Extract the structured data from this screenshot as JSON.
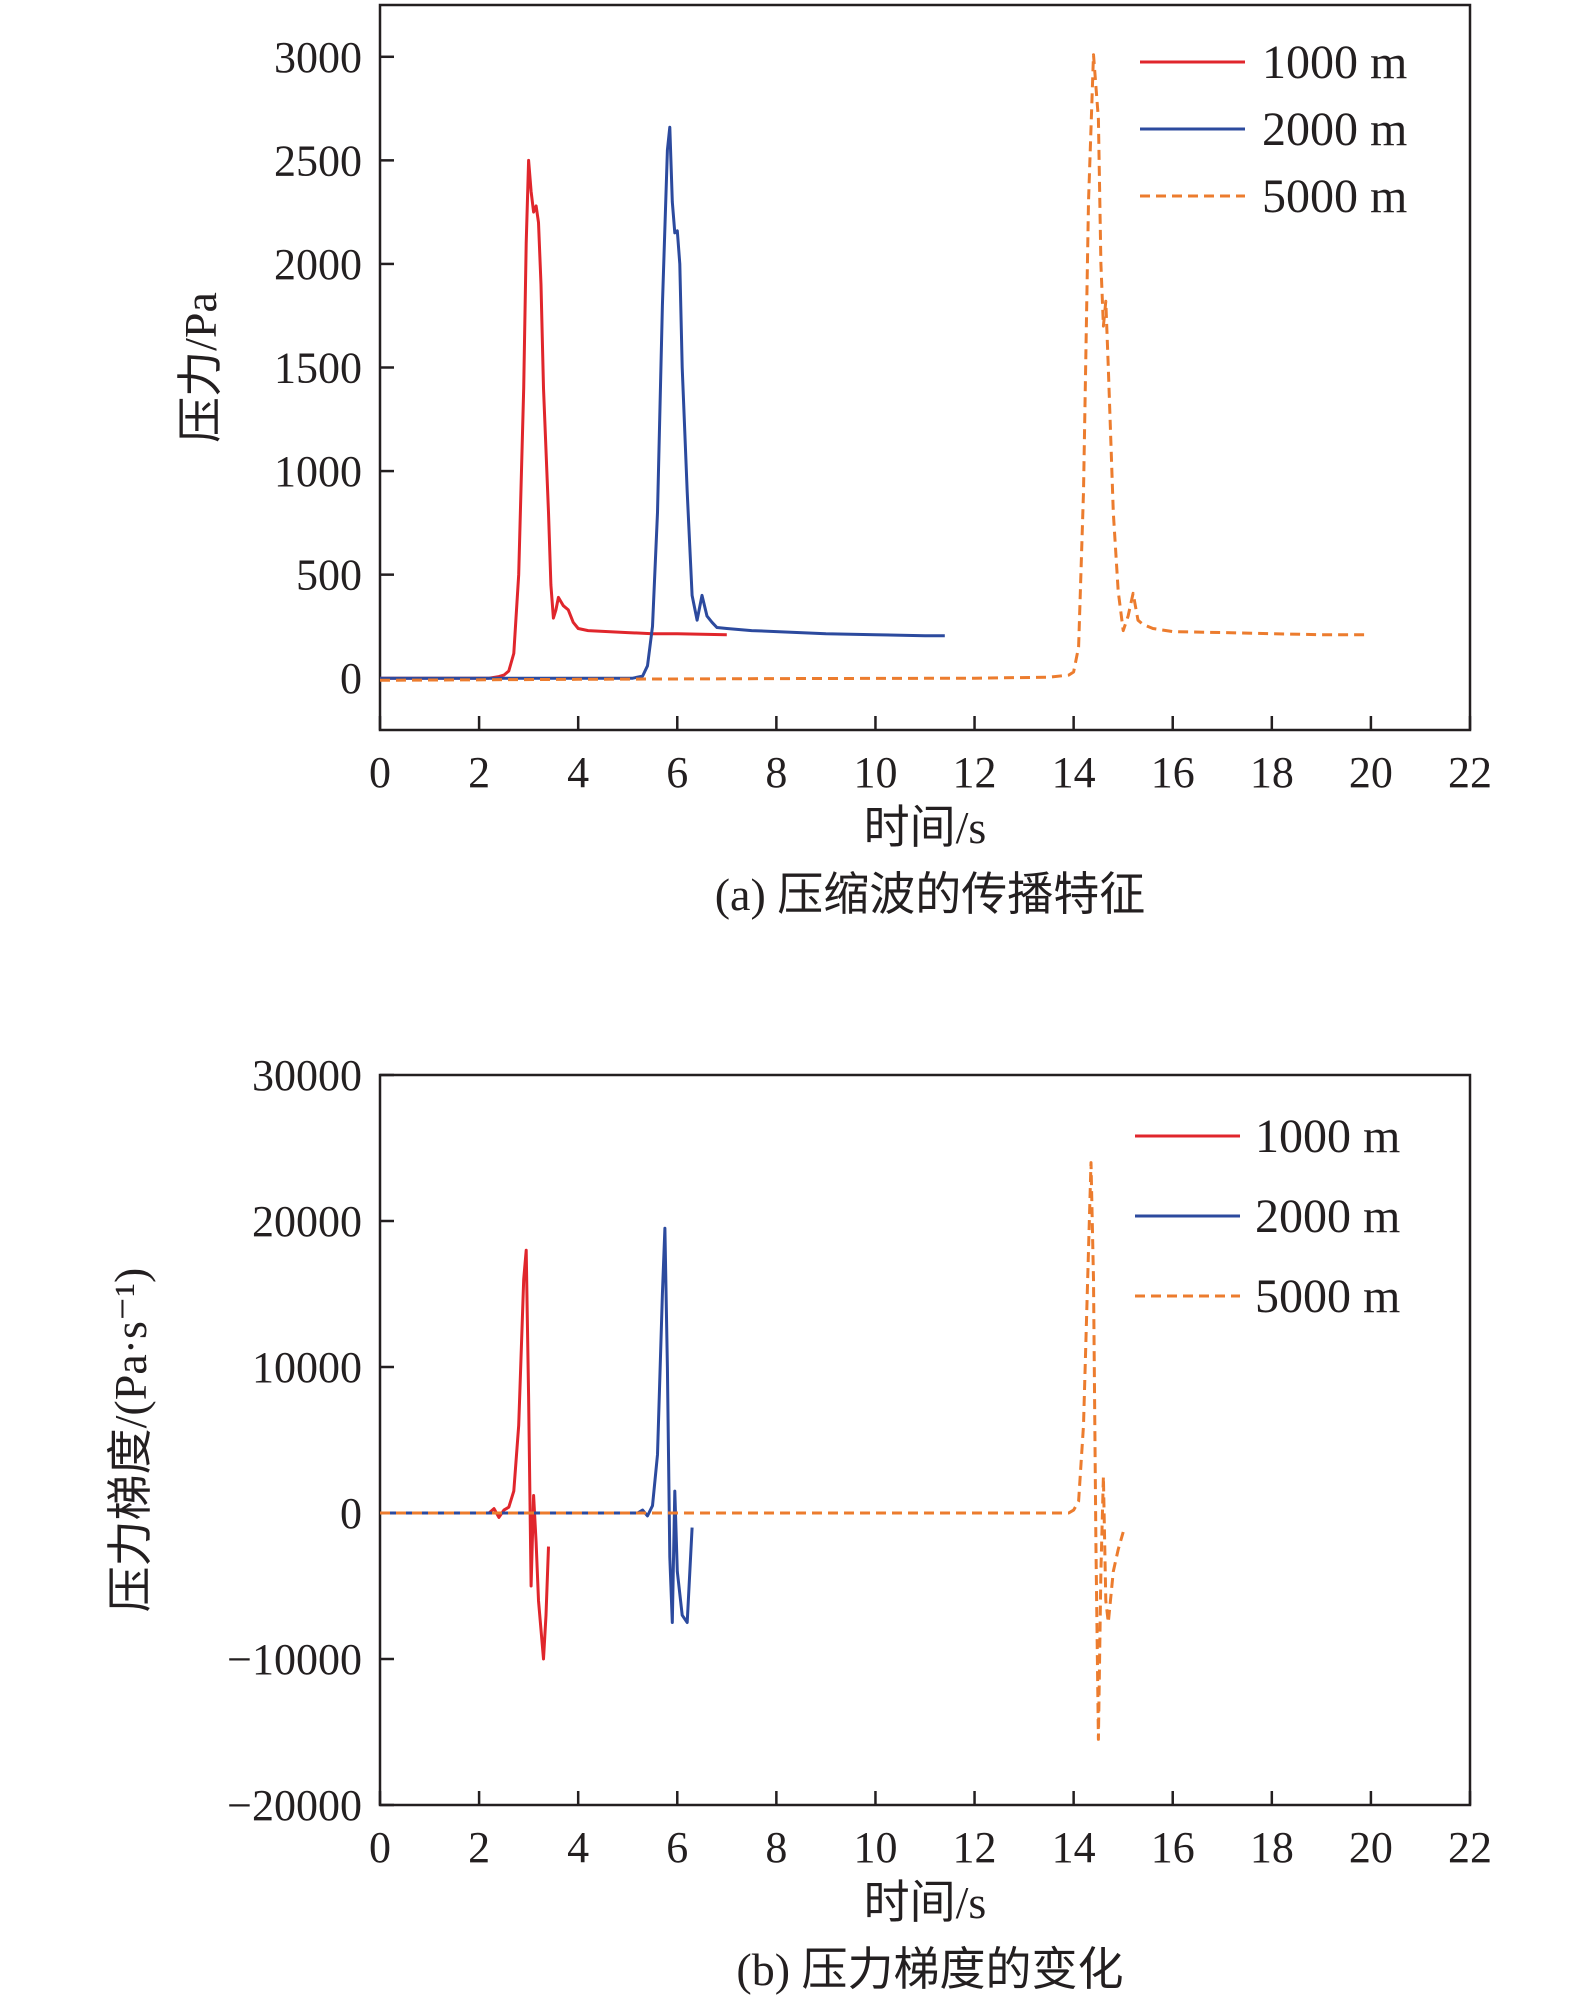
{
  "chart_data": [
    {
      "type": "line",
      "caption": "(a) 压缩波的传播特征",
      "xlabel": "时间/s",
      "ylabel": "压力/Pa",
      "xlim": [
        0,
        22
      ],
      "ylim": [
        -250,
        3250
      ],
      "x_ticks": [
        0,
        2,
        4,
        6,
        8,
        10,
        12,
        14,
        16,
        18,
        20,
        22
      ],
      "y_ticks": [
        0,
        500,
        1000,
        1500,
        2000,
        2500,
        3000
      ],
      "x_tick_labels": [
        "0",
        "2",
        "4",
        "6",
        "8",
        "10",
        "12",
        "14",
        "16",
        "18",
        "20",
        "22"
      ],
      "y_tick_labels": [
        "0",
        "500",
        "1000",
        "1500",
        "2000",
        "2500",
        "3000"
      ],
      "legend_position": "top-right",
      "grid": false,
      "series": [
        {
          "name": "1000 m",
          "color": "#e0262c",
          "dash": "solid",
          "points": [
            [
              0,
              0
            ],
            [
              2.2,
              0
            ],
            [
              2.4,
              8
            ],
            [
              2.5,
              15
            ],
            [
              2.6,
              35
            ],
            [
              2.7,
              120
            ],
            [
              2.8,
              500
            ],
            [
              2.9,
              1400
            ],
            [
              2.95,
              2100
            ],
            [
              3.0,
              2500
            ],
            [
              3.05,
              2350
            ],
            [
              3.1,
              2250
            ],
            [
              3.15,
              2280
            ],
            [
              3.2,
              2200
            ],
            [
              3.25,
              1900
            ],
            [
              3.3,
              1400
            ],
            [
              3.4,
              800
            ],
            [
              3.45,
              450
            ],
            [
              3.5,
              290
            ],
            [
              3.55,
              330
            ],
            [
              3.6,
              390
            ],
            [
              3.7,
              350
            ],
            [
              3.8,
              330
            ],
            [
              3.9,
              270
            ],
            [
              4.0,
              240
            ],
            [
              4.2,
              230
            ],
            [
              4.6,
              225
            ],
            [
              5.0,
              220
            ],
            [
              5.5,
              215
            ],
            [
              6.0,
              215
            ],
            [
              6.5,
              212
            ],
            [
              7.0,
              210
            ]
          ]
        },
        {
          "name": "2000 m",
          "color": "#2c4a9e",
          "dash": "solid",
          "points": [
            [
              0,
              0
            ],
            [
              5.1,
              0
            ],
            [
              5.3,
              10
            ],
            [
              5.4,
              60
            ],
            [
              5.5,
              250
            ],
            [
              5.6,
              800
            ],
            [
              5.7,
              1800
            ],
            [
              5.8,
              2550
            ],
            [
              5.85,
              2660
            ],
            [
              5.9,
              2300
            ],
            [
              5.95,
              2150
            ],
            [
              6.0,
              2160
            ],
            [
              6.05,
              2000
            ],
            [
              6.1,
              1500
            ],
            [
              6.2,
              900
            ],
            [
              6.3,
              400
            ],
            [
              6.4,
              280
            ],
            [
              6.5,
              400
            ],
            [
              6.6,
              300
            ],
            [
              6.7,
              270
            ],
            [
              6.8,
              245
            ],
            [
              7.0,
              240
            ],
            [
              7.5,
              230
            ],
            [
              8.0,
              225
            ],
            [
              9.0,
              215
            ],
            [
              10.0,
              210
            ],
            [
              11.0,
              205
            ],
            [
              11.4,
              205
            ]
          ]
        },
        {
          "name": "5000 m",
          "color": "#ec7c2e",
          "dash": "dashed",
          "points": [
            [
              0,
              -10
            ],
            [
              4,
              -5
            ],
            [
              8,
              -2
            ],
            [
              12,
              0
            ],
            [
              13.5,
              5
            ],
            [
              13.9,
              15
            ],
            [
              14.0,
              30
            ],
            [
              14.1,
              150
            ],
            [
              14.2,
              900
            ],
            [
              14.3,
              2300
            ],
            [
              14.4,
              3010
            ],
            [
              14.5,
              2700
            ],
            [
              14.55,
              2000
            ],
            [
              14.6,
              1700
            ],
            [
              14.65,
              1820
            ],
            [
              14.7,
              1500
            ],
            [
              14.8,
              800
            ],
            [
              14.9,
              420
            ],
            [
              15.0,
              230
            ],
            [
              15.1,
              300
            ],
            [
              15.2,
              410
            ],
            [
              15.3,
              280
            ],
            [
              15.4,
              260
            ],
            [
              15.6,
              240
            ],
            [
              16.0,
              225
            ],
            [
              17.0,
              220
            ],
            [
              18.0,
              215
            ],
            [
              19.0,
              210
            ],
            [
              19.9,
              210
            ]
          ]
        }
      ]
    },
    {
      "type": "line",
      "caption": "(b) 压力梯度的变化",
      "xlabel": "时间/s",
      "ylabel": "压力梯度/(Pa·s⁻¹)",
      "xlim": [
        0,
        22
      ],
      "ylim": [
        -20000,
        30000
      ],
      "x_ticks": [
        0,
        2,
        4,
        6,
        8,
        10,
        12,
        14,
        16,
        18,
        20,
        22
      ],
      "y_ticks": [
        -20000,
        -10000,
        0,
        10000,
        20000,
        30000
      ],
      "x_tick_labels": [
        "0",
        "2",
        "4",
        "6",
        "8",
        "10",
        "12",
        "14",
        "16",
        "18",
        "20",
        "22"
      ],
      "y_tick_labels": [
        "−20000",
        "−10000",
        "0",
        "10000",
        "20000",
        "30000"
      ],
      "legend_position": "top-right",
      "grid": false,
      "series": [
        {
          "name": "1000 m",
          "color": "#e0262c",
          "dash": "solid",
          "points": [
            [
              0,
              0
            ],
            [
              2.2,
              0
            ],
            [
              2.3,
              300
            ],
            [
              2.4,
              -300
            ],
            [
              2.5,
              200
            ],
            [
              2.6,
              400
            ],
            [
              2.7,
              1500
            ],
            [
              2.8,
              6000
            ],
            [
              2.9,
              16000
            ],
            [
              2.95,
              18000
            ],
            [
              3.0,
              8000
            ],
            [
              3.05,
              -5000
            ],
            [
              3.1,
              1200
            ],
            [
              3.15,
              -2000
            ],
            [
              3.2,
              -6000
            ],
            [
              3.3,
              -10000
            ],
            [
              3.35,
              -7000
            ],
            [
              3.4,
              -2300
            ]
          ]
        },
        {
          "name": "2000 m",
          "color": "#2c4a9e",
          "dash": "solid",
          "points": [
            [
              0,
              0
            ],
            [
              5.2,
              0
            ],
            [
              5.3,
              200
            ],
            [
              5.4,
              -200
            ],
            [
              5.5,
              500
            ],
            [
              5.6,
              4000
            ],
            [
              5.7,
              15000
            ],
            [
              5.75,
              19500
            ],
            [
              5.8,
              10000
            ],
            [
              5.85,
              -3000
            ],
            [
              5.9,
              -7500
            ],
            [
              5.95,
              1500
            ],
            [
              6.0,
              -4000
            ],
            [
              6.1,
              -7000
            ],
            [
              6.2,
              -7500
            ],
            [
              6.3,
              -1000
            ]
          ]
        },
        {
          "name": "5000 m",
          "color": "#ec7c2e",
          "dash": "dashed",
          "points": [
            [
              0,
              0
            ],
            [
              13.9,
              0
            ],
            [
              14.0,
              200
            ],
            [
              14.1,
              800
            ],
            [
              14.2,
              6000
            ],
            [
              14.3,
              18000
            ],
            [
              14.35,
              24000
            ],
            [
              14.4,
              16000
            ],
            [
              14.45,
              -2000
            ],
            [
              14.5,
              -15500
            ],
            [
              14.55,
              -4000
            ],
            [
              14.6,
              2500
            ],
            [
              14.65,
              -6000
            ],
            [
              14.7,
              -7500
            ],
            [
              14.8,
              -4000
            ],
            [
              14.9,
              -2500
            ],
            [
              15.0,
              -1300
            ]
          ]
        }
      ]
    }
  ]
}
